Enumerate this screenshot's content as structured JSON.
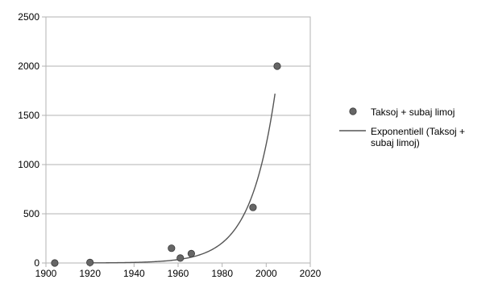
{
  "chart_data": {
    "type": "scatter",
    "title": "",
    "xlabel": "",
    "ylabel": "",
    "xlim": [
      1900,
      2020
    ],
    "ylim": [
      0,
      2500
    ],
    "x_ticks": [
      "1900",
      "1920",
      "1940",
      "1960",
      "1980",
      "2000",
      "2020"
    ],
    "y_ticks": [
      "0",
      "500",
      "1000",
      "1500",
      "2000",
      "2500"
    ],
    "grid": "horizontal",
    "legend_position": "right",
    "series": [
      {
        "name": "Taksoj + subaj limoj",
        "type": "scatter",
        "color": "#666666",
        "points": [
          {
            "x": 1904,
            "y": 0
          },
          {
            "x": 1920,
            "y": 5
          },
          {
            "x": 1957,
            "y": 150
          },
          {
            "x": 1961,
            "y": 50
          },
          {
            "x": 1966,
            "y": 95
          },
          {
            "x": 1994,
            "y": 565
          },
          {
            "x": 2005,
            "y": 2000
          }
        ]
      },
      {
        "name": "Exponentiell (Taksoj + subaj limoj)",
        "type": "line",
        "color": "#555555",
        "curve": {
          "form": "exponential",
          "x_start": 1920,
          "x_end": 2004,
          "y_start": 1,
          "y_end": 1720
        }
      }
    ],
    "legend": [
      {
        "lines": [
          "Taksoj + subaj limoj"
        ]
      },
      {
        "lines": [
          "Exponentiell (Taksoj +",
          "subaj limoj)"
        ]
      }
    ]
  }
}
